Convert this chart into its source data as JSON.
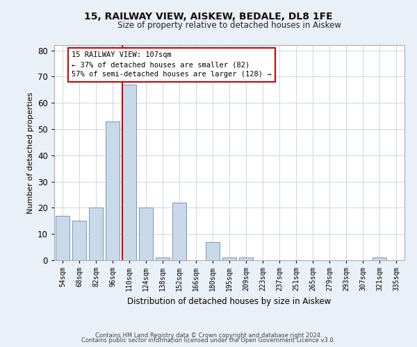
{
  "title_line1": "15, RAILWAY VIEW, AISKEW, BEDALE, DL8 1FE",
  "title_line2": "Size of property relative to detached houses in Aiskew",
  "xlabel": "Distribution of detached houses by size in Aiskew",
  "ylabel": "Number of detached properties",
  "categories": [
    "54sqm",
    "68sqm",
    "82sqm",
    "96sqm",
    "110sqm",
    "124sqm",
    "138sqm",
    "152sqm",
    "166sqm",
    "180sqm",
    "195sqm",
    "209sqm",
    "223sqm",
    "237sqm",
    "251sqm",
    "265sqm",
    "279sqm",
    "293sqm",
    "307sqm",
    "321sqm",
    "335sqm"
  ],
  "values": [
    17,
    15,
    20,
    53,
    67,
    20,
    1,
    22,
    0,
    7,
    1,
    1,
    0,
    0,
    0,
    0,
    0,
    0,
    0,
    1,
    0
  ],
  "bar_color": "#c9d9ea",
  "bar_edge_color": "#7099bb",
  "vline_color": "#cc0000",
  "ylim": [
    0,
    82
  ],
  "yticks": [
    0,
    10,
    20,
    30,
    40,
    50,
    60,
    70,
    80
  ],
  "annotation_line1": "15 RAILWAY VIEW: 107sqm",
  "annotation_line2": "← 37% of detached houses are smaller (82)",
  "annotation_line3": "57% of semi-detached houses are larger (128) →",
  "annotation_box_color": "#ffffff",
  "annotation_box_edge": "#cc0000",
  "footer_line1": "Contains HM Land Registry data © Crown copyright and database right 2024.",
  "footer_line2": "Contains public sector information licensed under the Open Government Licence v3.0.",
  "background_color": "#eaf0f7",
  "plot_background": "#ffffff",
  "grid_color": "#c5cfe0"
}
